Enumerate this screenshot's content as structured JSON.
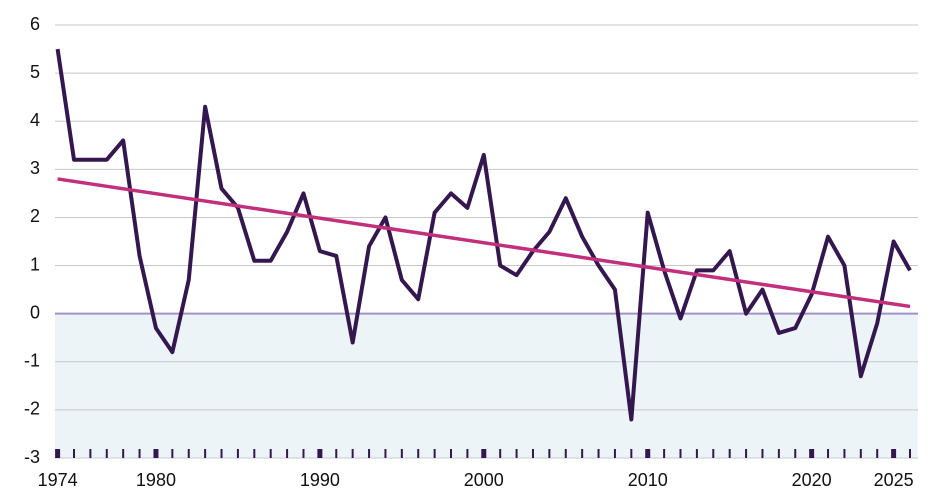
{
  "chart_data": {
    "type": "line",
    "x": [
      1974,
      1975,
      1976,
      1977,
      1978,
      1979,
      1980,
      1981,
      1982,
      1983,
      1984,
      1985,
      1986,
      1987,
      1988,
      1989,
      1990,
      1991,
      1992,
      1993,
      1994,
      1995,
      1996,
      1997,
      1998,
      1999,
      2000,
      2001,
      2002,
      2003,
      2004,
      2005,
      2006,
      2007,
      2008,
      2009,
      2010,
      2011,
      2012,
      2013,
      2014,
      2015,
      2016,
      2017,
      2018,
      2019,
      2020,
      2021,
      2022,
      2023,
      2024,
      2025,
      2026
    ],
    "series": [
      {
        "color": "#35174f",
        "values": [
          5.5,
          3.2,
          3.2,
          3.2,
          3.6,
          1.2,
          -0.3,
          -0.8,
          0.7,
          4.3,
          2.6,
          2.2,
          1.1,
          1.1,
          1.7,
          2.5,
          1.3,
          1.2,
          -0.6,
          1.4,
          2.0,
          0.7,
          0.3,
          2.1,
          2.5,
          2.2,
          3.3,
          1.0,
          0.8,
          1.3,
          1.7,
          2.4,
          1.6,
          1.0,
          0.5,
          -2.2,
          2.1,
          0.9,
          -0.1,
          0.9,
          0.9,
          1.3,
          0.0,
          0.5,
          -0.4,
          -0.3,
          0.4,
          1.6,
          1.0,
          -1.3,
          -0.2,
          1.5,
          0.9
        ]
      }
    ],
    "trend": {
      "x": [
        1974,
        2026
      ],
      "values": [
        2.8,
        0.15
      ],
      "color": "#c2307c"
    },
    "xlim": [
      1974,
      2026
    ],
    "xticks": [
      1974,
      1980,
      1990,
      2000,
      2010,
      2020,
      2025
    ],
    "ylim": [
      -3,
      6
    ],
    "yticks": [
      -3,
      -2,
      -1,
      0,
      1,
      2,
      3,
      4,
      5,
      6
    ],
    "grid": true,
    "negative_fill": "#edf4f8"
  }
}
